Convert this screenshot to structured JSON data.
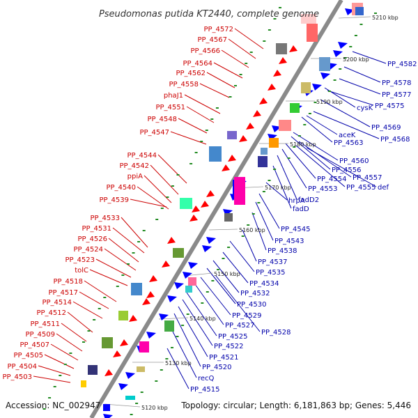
{
  "title": "Pseudomonas putida KT2440, complete genome",
  "footer": {
    "accession": "Accession: NC_002947",
    "topology": "Topology: circular; Length: 6,181,863 bp; Genes: 5,446"
  },
  "colors": {
    "axis": "#8a8a8a",
    "left_label": "#cc0000",
    "right_label": "#0000aa",
    "left_gene": "#ff0000",
    "right_gene": "#0000ff",
    "tick": "#228b22"
  },
  "kbp_ticks": [
    "5120 kbp",
    "5130 kbp",
    "5140 kbp",
    "5150 kbp",
    "5160 kbp",
    "5170 kbp",
    "5180 kbp",
    "5190 kbp",
    "5200 kbp",
    "5210 kbp"
  ],
  "left_labels": [
    "PP_4572",
    "PP_4567",
    "PP_4566",
    "PP_4564",
    "PP_4562",
    "PP_4558",
    "phaJ1",
    "PP_4551",
    "PP_4548",
    "PP_4547",
    "PP_4544",
    "PP_4542",
    "ppiA",
    "PP_4540",
    "PP_4539",
    "PP_4533",
    "PP_4531",
    "PP_4526",
    "PP_4524",
    "PP_4523",
    "tolC",
    "PP_4518",
    "PP_4517",
    "PP_4514",
    "PP_4512",
    "PP_4511",
    "PP_4509",
    "PP_4507",
    "PP_4505",
    "PP_4504",
    "PP_4503"
  ],
  "right_labels": [
    "PP_4582",
    "PP_4578",
    "PP_4577",
    "cysK",
    "PP_4575",
    "PP_4569",
    "aceK",
    "PP_4568",
    "PP_4563",
    "PP_4560",
    "PP_4556",
    "PP_4557",
    "PP_4554",
    "PP_4555",
    "def",
    "PP_4553",
    "fadD2",
    "fadD",
    "hrpA",
    "PP_4545",
    "PP_4543",
    "PP_4538",
    "PP_4537",
    "PP_4535",
    "PP_4534",
    "PP_4532",
    "PP_4530",
    "PP_4529",
    "PP_4527",
    "PP_4528",
    "PP_4525",
    "PP_4522",
    "PP_4521",
    "PP_4520",
    "recQ",
    "PP_4515"
  ]
}
